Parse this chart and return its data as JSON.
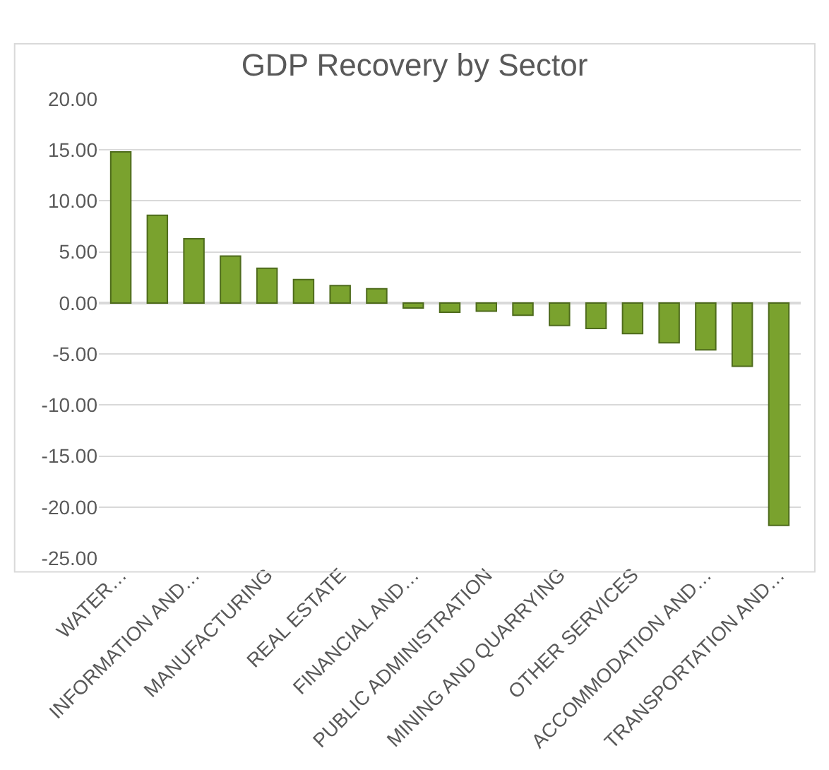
{
  "chart_data": {
    "type": "bar",
    "title": "GDP Recovery by Sector",
    "categories": [
      "WATER…",
      null,
      "INFORMATION AND…",
      null,
      "MANUFACTURING",
      null,
      "REAL ESTATE",
      null,
      "FINANCIAL AND…",
      null,
      "PUBLIC ADMINISTRATION",
      null,
      "MINING AND QUARRYING",
      null,
      "OTHER SERVICES",
      null,
      "ACCOMMODATION AND…",
      null,
      "TRANSPORTATION AND…"
    ],
    "values": [
      14.8,
      8.6,
      6.3,
      4.6,
      3.4,
      2.3,
      1.7,
      1.4,
      -0.5,
      -0.9,
      -0.8,
      -1.2,
      -2.2,
      -2.5,
      -3.0,
      -3.9,
      -4.6,
      -6.2,
      -21.8
    ],
    "color": "#7aa22e",
    "ylim": [
      -25,
      20
    ],
    "yticks": [
      {
        "value": -25,
        "label": "-25.00"
      },
      {
        "value": -20,
        "label": "-20.00"
      },
      {
        "value": -15,
        "label": "-15.00"
      },
      {
        "value": -10,
        "label": "-10.00"
      },
      {
        "value": -5,
        "label": "-5.00"
      },
      {
        "value": 0,
        "label": "0.00"
      },
      {
        "value": 5,
        "label": "5.00"
      },
      {
        "value": 10,
        "label": "10.00"
      },
      {
        "value": 15,
        "label": "15.00"
      },
      {
        "value": 20,
        "label": "20.00"
      }
    ],
    "grid": "y"
  }
}
